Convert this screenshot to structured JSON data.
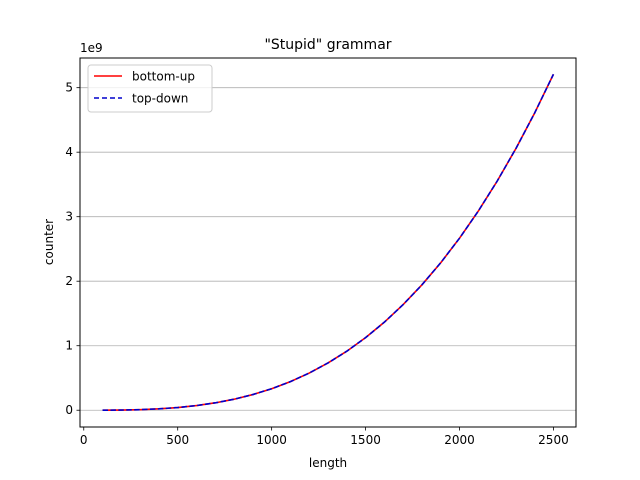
{
  "chart_data": {
    "type": "line",
    "title": "\"Stupid\" grammar",
    "xlabel": "length",
    "ylabel": "counter",
    "y_offset_label": "1e9",
    "y_scale": 1000000000,
    "xlim": [
      -20,
      2620
    ],
    "ylim": [
      -260000000,
      5460000000
    ],
    "x_ticks": [
      0,
      500,
      1000,
      1500,
      2000,
      2500
    ],
    "y_ticks": [
      0,
      1,
      2,
      3,
      4,
      5
    ],
    "grid": "y-only",
    "legend_position": "upper-left",
    "x": [
      100,
      200,
      300,
      400,
      500,
      600,
      700,
      800,
      900,
      1000,
      1100,
      1200,
      1300,
      1400,
      1500,
      1600,
      1700,
      1800,
      1900,
      2000,
      2100,
      2200,
      2300,
      2400,
      2500
    ],
    "series": [
      {
        "name": "bottom-up",
        "color": "#ff0000",
        "style": "solid",
        "values": [
          333300,
          2666600,
          8999900,
          21333200,
          41666500,
          71999800,
          114333100,
          170666400,
          242999700,
          333333000,
          443666300,
          575999600,
          732332900,
          914666200,
          1124999500,
          1365332800,
          1637666100,
          1943999400,
          2286332700,
          2666666000,
          3086999300,
          3549332600,
          4055665900,
          4607999200,
          5208332500
        ]
      },
      {
        "name": "top-down",
        "color": "#0000cc",
        "style": "dashed",
        "values": [
          333300,
          2666600,
          8999900,
          21333200,
          41666500,
          71999800,
          114333100,
          170666400,
          242999700,
          333333000,
          443666300,
          575999600,
          732332900,
          914666200,
          1124999500,
          1365332800,
          1637666100,
          1943999400,
          2286332700,
          2666666000,
          3086999300,
          3549332600,
          4055665900,
          4607999200,
          5208332500
        ]
      }
    ]
  }
}
